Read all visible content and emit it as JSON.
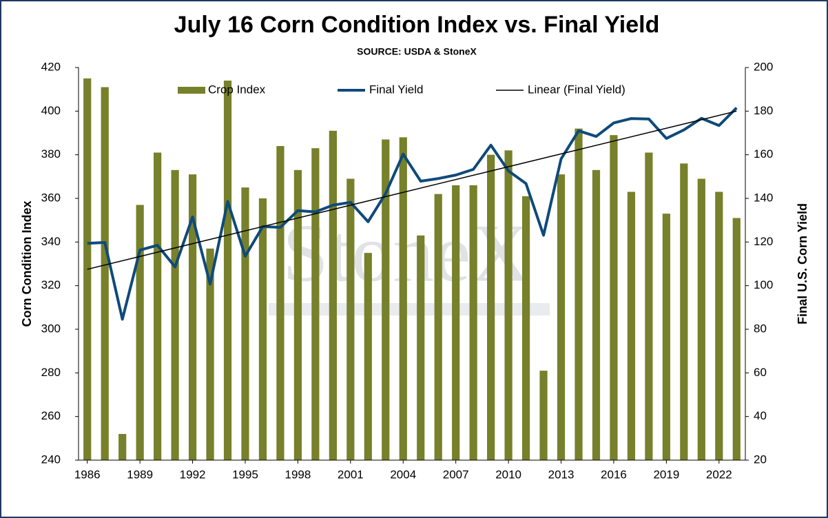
{
  "chart_data": {
    "type": "bar-line",
    "title": "July 16 Corn Condition Index vs. Final Yield",
    "subtitle": "SOURCE: USDA & StoneX",
    "watermark": "StoneX",
    "y_label": "Corn Condition Index",
    "y2_label": "Final U.S. Corn Yield",
    "x": [
      1986,
      1987,
      1988,
      1989,
      1990,
      1991,
      1992,
      1993,
      1994,
      1995,
      1996,
      1997,
      1998,
      1999,
      2000,
      2001,
      2002,
      2003,
      2004,
      2005,
      2006,
      2007,
      2008,
      2009,
      2010,
      2011,
      2012,
      2013,
      2014,
      2015,
      2016,
      2017,
      2018,
      2019,
      2020,
      2021,
      2022,
      2023
    ],
    "xlim": [
      1985.5,
      2023.5
    ],
    "xticks": [
      1986,
      1989,
      1992,
      1995,
      1998,
      2001,
      2004,
      2007,
      2010,
      2013,
      2016,
      2019,
      2022
    ],
    "ylim": [
      240,
      420
    ],
    "yticks": [
      240,
      260,
      280,
      300,
      320,
      340,
      360,
      380,
      400,
      420
    ],
    "y2lim": [
      20,
      200
    ],
    "y2ticks": [
      20,
      40,
      60,
      80,
      100,
      120,
      140,
      160,
      180,
      200
    ],
    "grid": false,
    "series": [
      {
        "name": "Crop Index",
        "type": "bar",
        "color": "#77802a",
        "values": [
          415,
          411,
          252,
          357,
          381,
          373,
          371,
          337,
          414,
          365,
          360,
          384,
          373,
          383,
          391,
          369,
          335,
          387,
          388,
          343,
          362,
          366,
          366,
          380,
          382,
          361,
          281,
          371,
          392,
          373,
          389,
          363,
          381,
          353,
          376,
          369,
          363,
          351
        ]
      },
      {
        "name": "Final Yield",
        "type": "line",
        "color": "#0e4a7a",
        "axis": "y2",
        "values": [
          119.4,
          119.8,
          84.6,
          116.3,
          118.5,
          108.6,
          131.5,
          100.7,
          138.6,
          113.5,
          127.1,
          126.7,
          134.4,
          133.8,
          136.9,
          138.2,
          129.3,
          142.2,
          160.3,
          147.9,
          149.1,
          150.7,
          153.3,
          164.4,
          152.6,
          146.8,
          123.1,
          158.1,
          171.0,
          168.4,
          174.6,
          176.6,
          176.4,
          167.5,
          171.4,
          176.7,
          173.4,
          181.5
        ]
      }
    ],
    "trendline": {
      "name": "Linear (Final Yield)",
      "color": "#000000",
      "axis": "y2",
      "x": [
        1986,
        2023
      ],
      "values": [
        107.5,
        180
      ]
    }
  }
}
